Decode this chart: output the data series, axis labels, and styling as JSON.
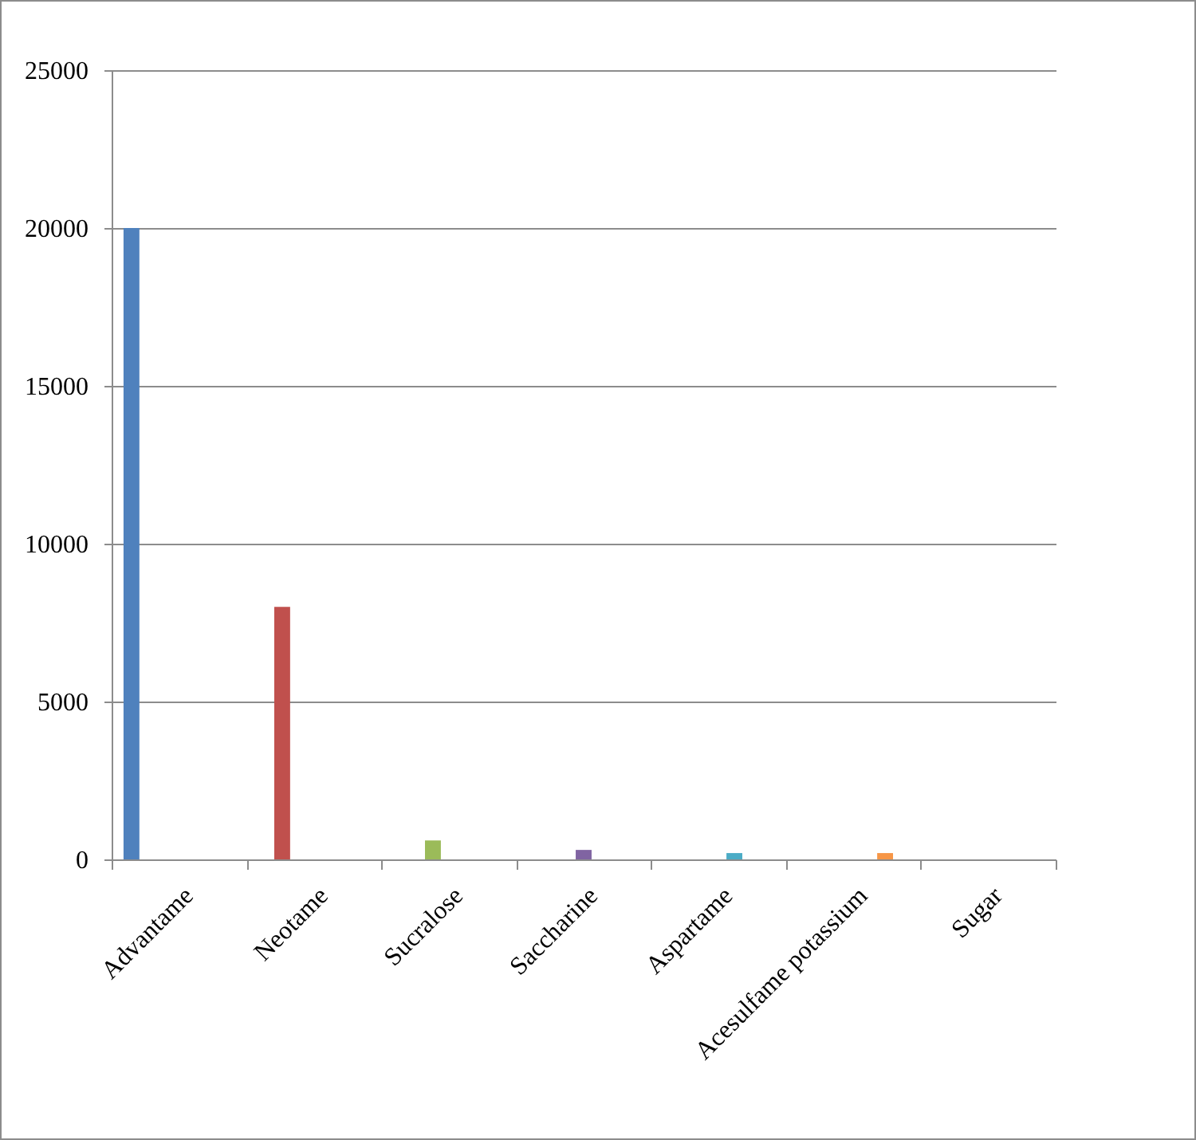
{
  "chart_data": {
    "type": "bar",
    "categories": [
      "Advantame",
      "Neotame",
      "Sucralose",
      "Saccharine",
      "Aspartame",
      "Acesulfame potassium",
      "Sugar"
    ],
    "values": [
      20000,
      8000,
      600,
      300,
      200,
      200,
      null
    ],
    "colors": [
      "#4f81bd",
      "#c0504d",
      "#9bbb59",
      "#8064a2",
      "#4bacc6",
      "#f79646",
      null
    ],
    "ylim": [
      0,
      25000
    ],
    "yticks": [
      0,
      5000,
      10000,
      15000,
      20000,
      25000
    ],
    "grid": "y"
  }
}
